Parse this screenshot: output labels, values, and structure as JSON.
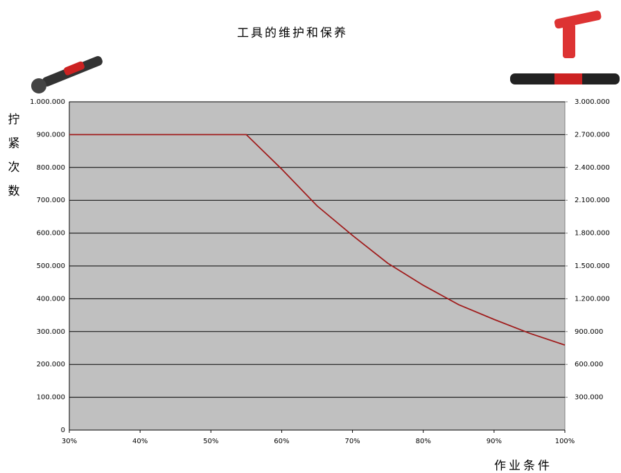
{
  "chart_data": {
    "type": "line",
    "title": "工具的维护和保养",
    "y_label": [
      "拧",
      "紧",
      "次",
      "数"
    ],
    "x_label": "作业条件",
    "x": [
      30,
      35,
      40,
      45,
      50,
      55,
      60,
      65,
      70,
      75,
      80,
      85,
      90,
      95,
      100
    ],
    "values": [
      900000,
      900000,
      900000,
      900000,
      900000,
      900000,
      795000,
      683000,
      593000,
      508000,
      441000,
      382000,
      337000,
      295000,
      259000
    ],
    "color": "#a01c1c",
    "xlim": [
      30,
      100
    ],
    "xticks": [
      {
        "value": 30,
        "label": "30%"
      },
      {
        "value": 40,
        "label": "40%"
      },
      {
        "value": 50,
        "label": "50%"
      },
      {
        "value": 60,
        "label": "60%"
      },
      {
        "value": 70,
        "label": "70%"
      },
      {
        "value": 80,
        "label": "80%"
      },
      {
        "value": 90,
        "label": "90%"
      },
      {
        "value": 100,
        "label": "100%"
      }
    ],
    "ylim": [
      0,
      1000000
    ],
    "yticks": [
      0,
      {
        "value": 100000,
        "label": "100.000"
      },
      {
        "value": 200000,
        "label": "200.000"
      },
      {
        "value": 300000,
        "label": "300.000"
      },
      {
        "value": 400000,
        "label": "400.000"
      },
      {
        "value": 500000,
        "label": "500.000"
      },
      {
        "value": 600000,
        "label": "600.000"
      },
      {
        "value": 700000,
        "label": "700.000"
      },
      {
        "value": 800000,
        "label": "800.000"
      },
      {
        "value": 900000,
        "label": "900.000"
      },
      {
        "value": 1000000,
        "label": "1.000.000"
      }
    ],
    "y2lim": [
      0,
      3000000
    ],
    "y2ticks": [
      {
        "value": 300000,
        "label": "300.000"
      },
      {
        "value": 600000,
        "label": "600.000"
      },
      {
        "value": 900000,
        "label": "900.000"
      },
      {
        "value": 1200000,
        "label": "1.200.000"
      },
      {
        "value": 1500000,
        "label": "1.500.000"
      },
      {
        "value": 1800000,
        "label": "1.800.000"
      },
      {
        "value": 2100000,
        "label": "2.100.000"
      },
      {
        "value": 2400000,
        "label": "2.400.000"
      },
      {
        "value": 2700000,
        "label": "2.700.000"
      },
      {
        "value": 3000000,
        "label": "3.000.000"
      }
    ],
    "grid": true
  }
}
